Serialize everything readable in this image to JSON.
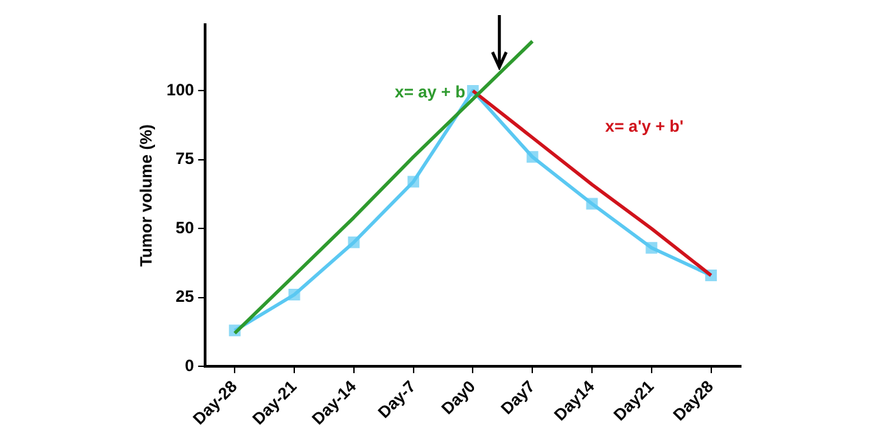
{
  "chart_data": {
    "type": "line",
    "ylabel": "Tumor volume (%)",
    "categories": [
      "Day-28",
      "Day-21",
      "Day-14",
      "Day-7",
      "Day0",
      "Day7",
      "Day14",
      "Day21",
      "Day28"
    ],
    "ylim": [
      0,
      124
    ],
    "yticks": [
      0,
      25,
      50,
      75,
      100
    ],
    "grid": false,
    "legend": false,
    "marker": "square",
    "line_style": "solid",
    "series": [
      {
        "color": "#5ac8f2",
        "values": [
          13,
          26,
          45,
          67,
          100,
          76,
          59,
          43,
          33
        ]
      },
      {
        "type": "line",
        "color": "#2e9a2e",
        "marker": "none",
        "values": [
          12,
          33,
          54,
          76,
          97,
          118,
          null,
          null,
          null
        ]
      },
      {
        "type": "line",
        "color": "#d0121b",
        "marker": "none",
        "values": [
          null,
          null,
          null,
          null,
          100,
          83,
          66,
          50,
          33
        ]
      }
    ],
    "annotations": [
      "x= ay + b",
      "x= a'y + b'"
    ]
  }
}
